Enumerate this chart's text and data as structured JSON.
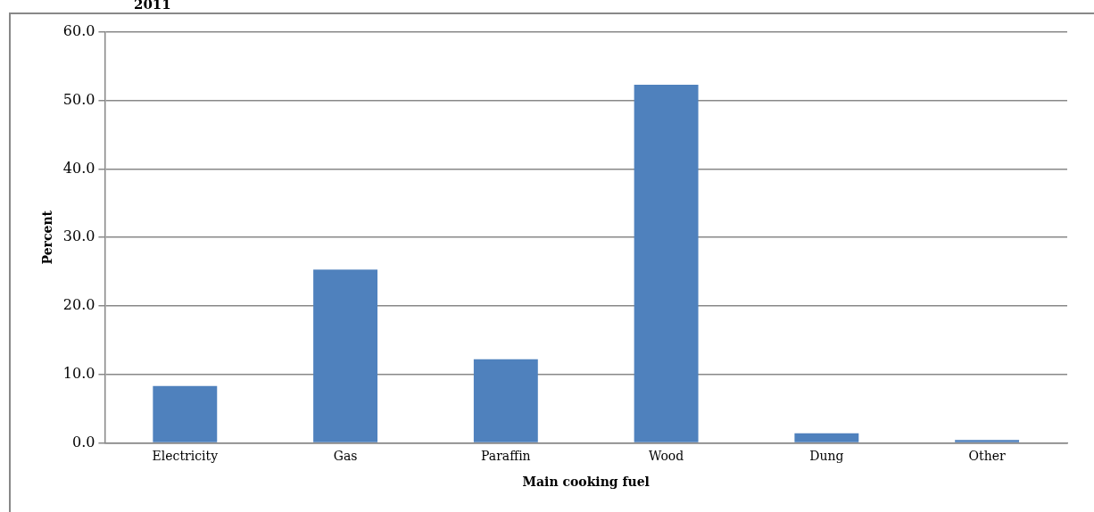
{
  "chart_data": {
    "type": "bar",
    "title": "2011",
    "xlabel": "Main cooking fuel",
    "ylabel": "Percent",
    "categories": [
      "Electricity",
      "Gas",
      "Paraffin",
      "Wood",
      "Dung",
      "Other"
    ],
    "values": [
      8.3,
      25.3,
      12.2,
      52.3,
      1.4,
      0.4
    ],
    "color": "#4f81bd",
    "ylim": [
      0,
      60
    ],
    "yticks": [
      {
        "value": 0,
        "label": "0.0"
      },
      {
        "value": 10,
        "label": "10.0"
      },
      {
        "value": 20,
        "label": "20.0"
      },
      {
        "value": 30,
        "label": "30.0"
      },
      {
        "value": 40,
        "label": "40.0"
      },
      {
        "value": 50,
        "label": "50.0"
      },
      {
        "value": 60,
        "label": "60.0"
      }
    ],
    "grid": "y",
    "legend": false
  }
}
